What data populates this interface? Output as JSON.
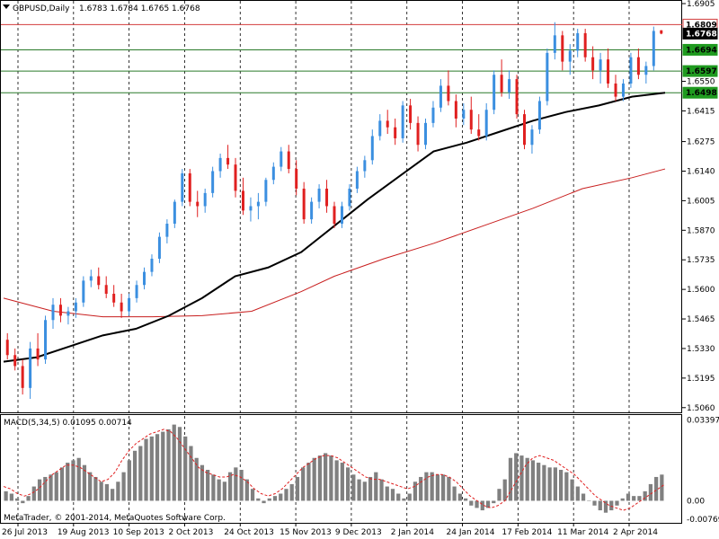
{
  "header": {
    "symbol": "GBPUSD,Daily",
    "ohlc": "1.6783 1.6784 1.6765 1.6768"
  },
  "macd_header": "MACD(5,34,5) 0.01095 0.00714",
  "copyright": "MetaTrader, © 2001-2014, MetaQuotes Software Corp.",
  "colors": {
    "bull": "#3b8fe0",
    "bear": "#e02020",
    "ma_fast": "#000000",
    "ma_slow": "#c81e1e",
    "signal": "#e02020",
    "hist": "#808080",
    "res_line": "#d23c3c",
    "sup_line": "#2a7a2a"
  },
  "chart_data": [
    {
      "type": "line",
      "title": "GBPUSD,Daily",
      "x": [
        "26 Jul 2013",
        "19 Aug 2013",
        "10 Sep 2013",
        "2 Oct 2013",
        "24 Oct 2013",
        "15 Nov 2013",
        "9 Dec 2013",
        "2 Jan 2014",
        "24 Jan 2014",
        "17 Feb 2014",
        "11 Mar 2014",
        "2 Apr 2014"
      ],
      "y_ticks": [
        "1.5060",
        "1.5195",
        "1.5330",
        "1.5465",
        "1.5600",
        "1.5735",
        "1.5870",
        "1.6005",
        "1.6140",
        "1.6275",
        "1.6415",
        "1.6550",
        "1.6905"
      ],
      "ylim": [
        1.5055,
        1.6905
      ],
      "price_tags": [
        {
          "label": "1.6809",
          "value": 1.6809,
          "style": "red-outline"
        },
        {
          "label": "1.6768",
          "value": 1.6768,
          "style": "black-fill"
        },
        {
          "label": "1.6694",
          "value": 1.6694,
          "style": "green-fill"
        },
        {
          "label": "1.6597",
          "value": 1.6597,
          "style": "green-fill"
        },
        {
          "label": "1.6498",
          "value": 1.6498,
          "style": "green-fill"
        }
      ],
      "horizontal_lines": [
        {
          "value": 1.6809,
          "kind": "resistance"
        },
        {
          "value": 1.6694,
          "kind": "support"
        },
        {
          "value": 1.6597,
          "kind": "support"
        },
        {
          "value": 1.6498,
          "kind": "support"
        }
      ],
      "series": [
        {
          "kind": "ma_fast",
          "points": [
            [
              0,
              1.527
            ],
            [
              0.04,
              1.529
            ],
            [
              0.08,
              1.534
            ],
            [
              0.12,
              1.539
            ],
            [
              0.16,
              1.542
            ],
            [
              0.2,
              1.548
            ],
            [
              0.24,
              1.556
            ],
            [
              0.28,
              1.566
            ],
            [
              0.32,
              1.57
            ],
            [
              0.36,
              1.577
            ],
            [
              0.4,
              1.589
            ],
            [
              0.44,
              1.601
            ],
            [
              0.48,
              1.612
            ],
            [
              0.52,
              1.623
            ],
            [
              0.56,
              1.627
            ],
            [
              0.6,
              1.632
            ],
            [
              0.64,
              1.637
            ],
            [
              0.68,
              1.641
            ],
            [
              0.72,
              1.644
            ],
            [
              0.76,
              1.648
            ],
            [
              0.8,
              1.6498
            ]
          ]
        },
        {
          "kind": "ma_slow",
          "points": [
            [
              0,
              1.556
            ],
            [
              0.06,
              1.55
            ],
            [
              0.12,
              1.5475
            ],
            [
              0.18,
              1.5475
            ],
            [
              0.24,
              1.548
            ],
            [
              0.3,
              1.55
            ],
            [
              0.36,
              1.559
            ],
            [
              0.4,
              1.566
            ],
            [
              0.46,
              1.574
            ],
            [
              0.52,
              1.581
            ],
            [
              0.58,
              1.589
            ],
            [
              0.64,
              1.597
            ],
            [
              0.7,
              1.606
            ],
            [
              0.76,
              1.611
            ],
            [
              0.8,
              1.615
            ]
          ]
        }
      ],
      "candles": [
        [
          1.537,
          1.54,
          1.528,
          1.53
        ],
        [
          1.53,
          1.533,
          1.523,
          1.525
        ],
        [
          1.525,
          1.528,
          1.512,
          1.515
        ],
        [
          1.515,
          1.536,
          1.51,
          1.533
        ],
        [
          1.533,
          1.54,
          1.525,
          1.528
        ],
        [
          1.528,
          1.548,
          1.526,
          1.546
        ],
        [
          1.546,
          1.556,
          1.542,
          1.553
        ],
        [
          1.553,
          1.556,
          1.545,
          1.548
        ],
        [
          1.548,
          1.552,
          1.544,
          1.55
        ],
        [
          1.55,
          1.556,
          1.547,
          1.554
        ],
        [
          1.554,
          1.566,
          1.552,
          1.564
        ],
        [
          1.564,
          1.569,
          1.561,
          1.566
        ],
        [
          1.566,
          1.57,
          1.56,
          1.562
        ],
        [
          1.562,
          1.566,
          1.556,
          1.558
        ],
        [
          1.558,
          1.562,
          1.552,
          1.554
        ],
        [
          1.554,
          1.558,
          1.547,
          1.55
        ],
        [
          1.55,
          1.558,
          1.548,
          1.556
        ],
        [
          1.556,
          1.564,
          1.554,
          1.562
        ],
        [
          1.562,
          1.57,
          1.56,
          1.568
        ],
        [
          1.568,
          1.576,
          1.566,
          1.574
        ],
        [
          1.574,
          1.586,
          1.572,
          1.584
        ],
        [
          1.584,
          1.592,
          1.581,
          1.59
        ],
        [
          1.59,
          1.601,
          1.588,
          1.6
        ],
        [
          1.6,
          1.615,
          1.598,
          1.613
        ],
        [
          1.613,
          1.615,
          1.598,
          1.6
        ],
        [
          1.6,
          1.605,
          1.593,
          1.598
        ],
        [
          1.598,
          1.606,
          1.595,
          1.604
        ],
        [
          1.604,
          1.616,
          1.602,
          1.614
        ],
        [
          1.614,
          1.622,
          1.611,
          1.62
        ],
        [
          1.62,
          1.626,
          1.615,
          1.617
        ],
        [
          1.617,
          1.62,
          1.602,
          1.605
        ],
        [
          1.605,
          1.611,
          1.594,
          1.596
        ],
        [
          1.596,
          1.602,
          1.591,
          1.598
        ],
        [
          1.598,
          1.604,
          1.592,
          1.6
        ],
        [
          1.6,
          1.611,
          1.598,
          1.61
        ],
        [
          1.61,
          1.618,
          1.608,
          1.616
        ],
        [
          1.616,
          1.625,
          1.614,
          1.623
        ],
        [
          1.623,
          1.626,
          1.613,
          1.615
        ],
        [
          1.615,
          1.619,
          1.603,
          1.606
        ],
        [
          1.606,
          1.609,
          1.59,
          1.592
        ],
        [
          1.592,
          1.602,
          1.59,
          1.6
        ],
        [
          1.6,
          1.608,
          1.597,
          1.606
        ],
        [
          1.606,
          1.61,
          1.595,
          1.598
        ],
        [
          1.598,
          1.6,
          1.588,
          1.59
        ],
        [
          1.59,
          1.6,
          1.588,
          1.598
        ],
        [
          1.598,
          1.608,
          1.596,
          1.606
        ],
        [
          1.606,
          1.616,
          1.604,
          1.614
        ],
        [
          1.614,
          1.621,
          1.611,
          1.619
        ],
        [
          1.619,
          1.633,
          1.617,
          1.63
        ],
        [
          1.63,
          1.64,
          1.628,
          1.637
        ],
        [
          1.637,
          1.642,
          1.631,
          1.634
        ],
        [
          1.634,
          1.638,
          1.626,
          1.629
        ],
        [
          1.629,
          1.646,
          1.627,
          1.644
        ],
        [
          1.644,
          1.647,
          1.633,
          1.636
        ],
        [
          1.636,
          1.639,
          1.623,
          1.626
        ],
        [
          1.626,
          1.638,
          1.624,
          1.636
        ],
        [
          1.636,
          1.646,
          1.634,
          1.643
        ],
        [
          1.643,
          1.656,
          1.641,
          1.653
        ],
        [
          1.653,
          1.66,
          1.644,
          1.646
        ],
        [
          1.646,
          1.649,
          1.634,
          1.638
        ],
        [
          1.638,
          1.645,
          1.635,
          1.642
        ],
        [
          1.642,
          1.648,
          1.631,
          1.633
        ],
        [
          1.633,
          1.64,
          1.628,
          1.63
        ],
        [
          1.63,
          1.645,
          1.628,
          1.642
        ],
        [
          1.642,
          1.66,
          1.64,
          1.658
        ],
        [
          1.658,
          1.665,
          1.648,
          1.65
        ],
        [
          1.65,
          1.66,
          1.647,
          1.656
        ],
        [
          1.656,
          1.658,
          1.638,
          1.64
        ],
        [
          1.64,
          1.642,
          1.624,
          1.626
        ],
        [
          1.626,
          1.635,
          1.622,
          1.633
        ],
        [
          1.633,
          1.648,
          1.631,
          1.646
        ],
        [
          1.646,
          1.67,
          1.644,
          1.668
        ],
        [
          1.668,
          1.682,
          1.665,
          1.676
        ],
        [
          1.676,
          1.678,
          1.66,
          1.664
        ],
        [
          1.664,
          1.672,
          1.658,
          1.669
        ],
        [
          1.669,
          1.679,
          1.666,
          1.677
        ],
        [
          1.677,
          1.679,
          1.664,
          1.666
        ],
        [
          1.666,
          1.671,
          1.656,
          1.66
        ],
        [
          1.66,
          1.668,
          1.654,
          1.665
        ],
        [
          1.665,
          1.67,
          1.652,
          1.654
        ],
        [
          1.654,
          1.658,
          1.646,
          1.648
        ],
        [
          1.648,
          1.656,
          1.646,
          1.654
        ],
        [
          1.654,
          1.668,
          1.652,
          1.666
        ],
        [
          1.666,
          1.67,
          1.656,
          1.658
        ],
        [
          1.658,
          1.664,
          1.654,
          1.662
        ],
        [
          1.662,
          1.68,
          1.66,
          1.678
        ],
        [
          1.6783,
          1.6784,
          1.6765,
          1.6768
        ]
      ]
    },
    {
      "type": "bar",
      "title": "MACD(5,34,5) 0.01095 0.00714",
      "y_ticks": [
        "0.03397",
        "0.00",
        "-0.00769"
      ],
      "ylim": [
        -0.0085,
        0.0345
      ],
      "histogram": [
        0.004,
        0.003,
        0.001,
        -0.001,
        0.002,
        0.006,
        0.009,
        0.01,
        0.011,
        0.012,
        0.014,
        0.016,
        0.017,
        0.018,
        0.015,
        0.012,
        0.01,
        0.008,
        0.007,
        0.005,
        0.008,
        0.012,
        0.017,
        0.021,
        0.023,
        0.026,
        0.027,
        0.028,
        0.029,
        0.03,
        0.032,
        0.031,
        0.027,
        0.023,
        0.018,
        0.015,
        0.013,
        0.011,
        0.009,
        0.008,
        0.012,
        0.014,
        0.013,
        0.009,
        0.005,
        0.001,
        -0.001,
        0.001,
        0.002,
        0.003,
        0.005,
        0.007,
        0.01,
        0.014,
        0.016,
        0.018,
        0.019,
        0.02,
        0.019,
        0.017,
        0.016,
        0.014,
        0.011,
        0.009,
        0.008,
        0.01,
        0.012,
        0.009,
        0.006,
        0.005,
        0.003,
        0.001,
        0.003,
        0.008,
        0.01,
        0.012,
        0.012,
        0.011,
        0.011,
        0.01,
        0.006,
        0.003,
        0.001,
        -0.002,
        -0.003,
        -0.004,
        -0.003,
        -0.001,
        0.005,
        0.009,
        0.018,
        0.02,
        0.019,
        0.018,
        0.017,
        0.016,
        0.015,
        0.014,
        0.014,
        0.013,
        0.012,
        0.009,
        0.006,
        0.003,
        0.0,
        -0.002,
        -0.004,
        -0.005,
        -0.004,
        -0.002,
        0.001,
        0.003,
        0.002,
        0.002,
        0.004,
        0.007,
        0.01,
        0.011
      ],
      "signal": [
        0.006,
        0.005,
        0.003,
        0.002,
        0.003,
        0.005,
        0.008,
        0.011,
        0.013,
        0.015,
        0.015,
        0.014,
        0.012,
        0.01,
        0.008,
        0.009,
        0.012,
        0.017,
        0.021,
        0.024,
        0.026,
        0.028,
        0.029,
        0.03,
        0.029,
        0.026,
        0.022,
        0.018,
        0.014,
        0.012,
        0.011,
        0.01,
        0.01,
        0.011,
        0.01,
        0.008,
        0.005,
        0.003,
        0.002,
        0.003,
        0.005,
        0.008,
        0.011,
        0.014,
        0.016,
        0.018,
        0.019,
        0.019,
        0.018,
        0.016,
        0.014,
        0.012,
        0.01,
        0.009,
        0.009,
        0.008,
        0.007,
        0.006,
        0.005,
        0.006,
        0.008,
        0.01,
        0.011,
        0.011,
        0.01,
        0.008,
        0.005,
        0.002,
        0.0,
        -0.002,
        -0.003,
        -0.002,
        0.0,
        0.005,
        0.01,
        0.015,
        0.018,
        0.019,
        0.018,
        0.017,
        0.015,
        0.013,
        0.011,
        0.008,
        0.005,
        0.002,
        0.0,
        -0.002,
        -0.003,
        -0.004,
        -0.003,
        -0.001,
        0.001,
        0.003,
        0.005,
        0.007
      ]
    }
  ]
}
